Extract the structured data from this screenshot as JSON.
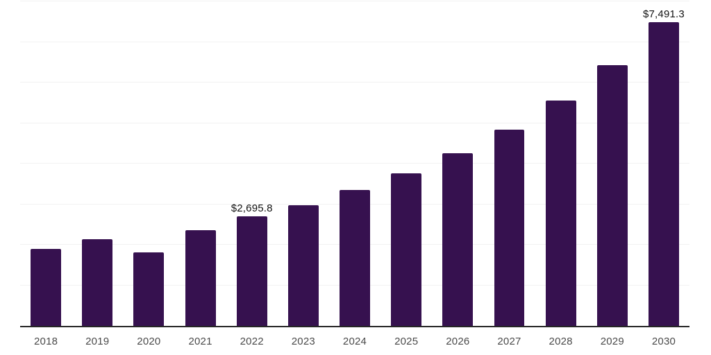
{
  "chart_data": {
    "type": "bar",
    "title": "",
    "xlabel": "",
    "ylabel": "",
    "categories": [
      "2018",
      "2019",
      "2020",
      "2021",
      "2022",
      "2023",
      "2024",
      "2025",
      "2026",
      "2027",
      "2028",
      "2029",
      "2030"
    ],
    "values": [
      1901,
      2136,
      1805,
      2352,
      2695.8,
      2980,
      3345,
      3762,
      4260,
      4830,
      5548,
      6425,
      7491.3
    ],
    "data_labels": {
      "2022": "$2,695.8",
      "2030": "$7,491.3"
    },
    "ylim": [
      0,
      8000
    ],
    "gridline_step": 1000,
    "grid": "horizontal-only",
    "legend": "none",
    "y_tick_labels_visible": false,
    "colors": {
      "bar": "#36114F",
      "axis_line": "#262626",
      "gridline": "#f2f2f2",
      "tick_label": "#4a4a4a",
      "data_label": "#111111",
      "background": "#ffffff"
    }
  }
}
